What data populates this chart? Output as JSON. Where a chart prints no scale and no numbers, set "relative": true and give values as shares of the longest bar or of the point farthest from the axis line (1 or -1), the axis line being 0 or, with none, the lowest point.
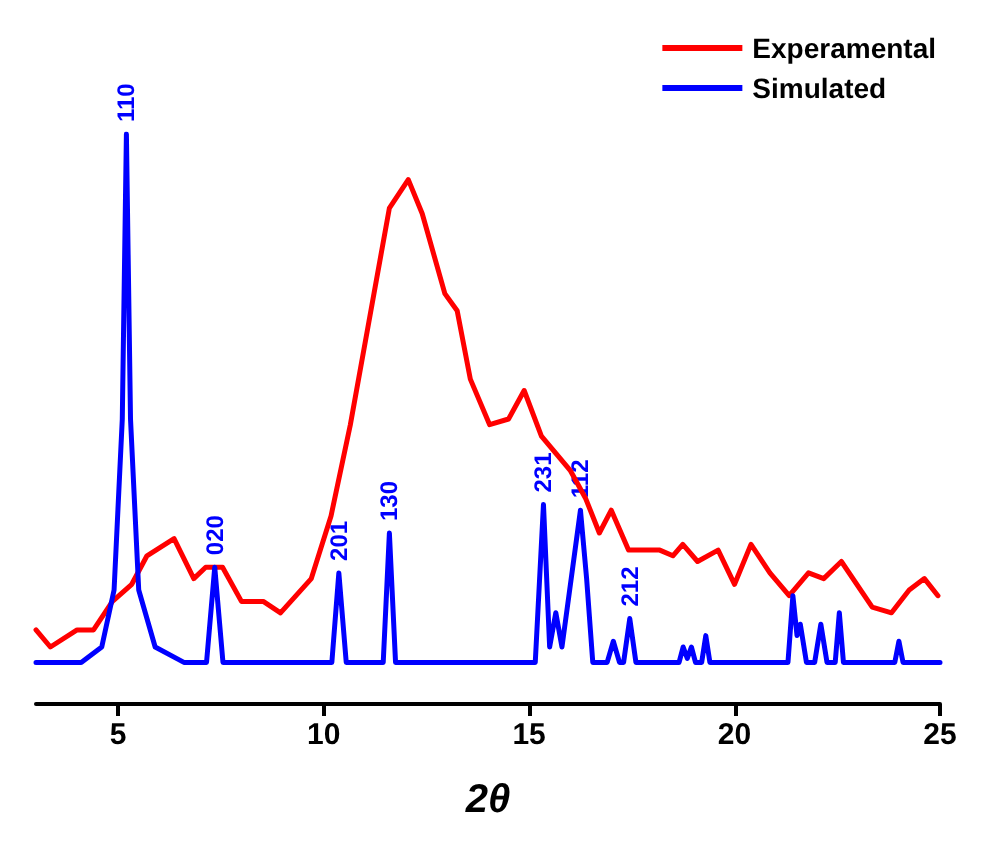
{
  "chart_data": {
    "type": "line",
    "relative": true,
    "xlabel": "2θ",
    "xlim": [
      3,
      25
    ],
    "xticks": [
      5,
      10,
      15,
      20,
      25
    ],
    "grid": false,
    "legend": "top right",
    "marker": "none",
    "line_style": "solid",
    "series": [
      {
        "name": "Experamental",
        "color": "#ff0000",
        "x": [
          3.0,
          3.35,
          4.0,
          4.4,
          4.86,
          5.33,
          5.7,
          6.36,
          6.84,
          7.13,
          7.54,
          8.0,
          8.53,
          8.95,
          9.7,
          10.18,
          10.65,
          11.1,
          11.6,
          12.06,
          12.4,
          12.95,
          13.25,
          13.57,
          14.04,
          14.5,
          14.88,
          15.3,
          16.0,
          16.38,
          16.71,
          17.0,
          17.42,
          17.9,
          18.18,
          18.5,
          18.74,
          19.1,
          19.6,
          20.0,
          20.4,
          20.86,
          21.33,
          21.8,
          22.17,
          22.6,
          23.35,
          23.82,
          24.25,
          24.62,
          24.95
        ],
        "values": [
          0.13,
          0.1,
          0.13,
          0.13,
          0.18,
          0.21,
          0.26,
          0.29,
          0.22,
          0.24,
          0.24,
          0.18,
          0.18,
          0.16,
          0.22,
          0.33,
          0.49,
          0.67,
          0.87,
          0.92,
          0.86,
          0.72,
          0.69,
          0.57,
          0.49,
          0.5,
          0.55,
          0.47,
          0.41,
          0.36,
          0.3,
          0.34,
          0.27,
          0.27,
          0.27,
          0.26,
          0.28,
          0.25,
          0.27,
          0.21,
          0.28,
          0.23,
          0.19,
          0.23,
          0.22,
          0.25,
          0.17,
          0.16,
          0.2,
          0.22,
          0.19
        ]
      },
      {
        "name": "Simulated",
        "color": "#0000ff",
        "x": [
          3.0,
          4.1,
          4.6,
          4.9,
          5.1,
          5.2,
          5.3,
          5.5,
          5.9,
          6.6,
          7.15,
          7.35,
          7.55,
          10.2,
          10.37,
          10.55,
          11.45,
          11.6,
          11.75,
          15.15,
          15.35,
          15.5,
          15.65,
          15.8,
          16.25,
          16.4,
          16.55,
          16.9,
          17.05,
          17.2,
          17.3,
          17.45,
          17.6,
          18.65,
          18.75,
          18.85,
          18.95,
          19.05,
          19.2,
          19.3,
          19.4,
          21.3,
          21.42,
          21.52,
          21.6,
          21.75,
          21.95,
          22.1,
          22.25,
          22.45,
          22.55,
          22.65,
          23.9,
          24.0,
          24.1,
          25.0
        ],
        "values": [
          0.073,
          0.073,
          0.1,
          0.2,
          0.5,
          1.0,
          0.5,
          0.2,
          0.1,
          0.073,
          0.073,
          0.24,
          0.073,
          0.073,
          0.23,
          0.073,
          0.073,
          0.3,
          0.073,
          0.073,
          0.35,
          0.1,
          0.16,
          0.1,
          0.34,
          0.22,
          0.073,
          0.073,
          0.11,
          0.073,
          0.073,
          0.15,
          0.073,
          0.073,
          0.1,
          0.08,
          0.1,
          0.073,
          0.073,
          0.12,
          0.073,
          0.073,
          0.19,
          0.12,
          0.14,
          0.073,
          0.073,
          0.14,
          0.073,
          0.073,
          0.16,
          0.073,
          0.073,
          0.11,
          0.073,
          0.073
        ]
      }
    ],
    "annotations": [
      {
        "text": "110",
        "x": 5.2,
        "y": 1.0
      },
      {
        "text": "020",
        "x": 7.35,
        "y": 0.24
      },
      {
        "text": "201",
        "x": 10.37,
        "y": 0.23
      },
      {
        "text": "130",
        "x": 11.6,
        "y": 0.3
      },
      {
        "text": "231",
        "x": 15.35,
        "y": 0.35
      },
      {
        "text": "112",
        "x": 16.25,
        "y": 0.34
      },
      {
        "text": "212",
        "x": 17.45,
        "y": 0.15
      }
    ]
  }
}
